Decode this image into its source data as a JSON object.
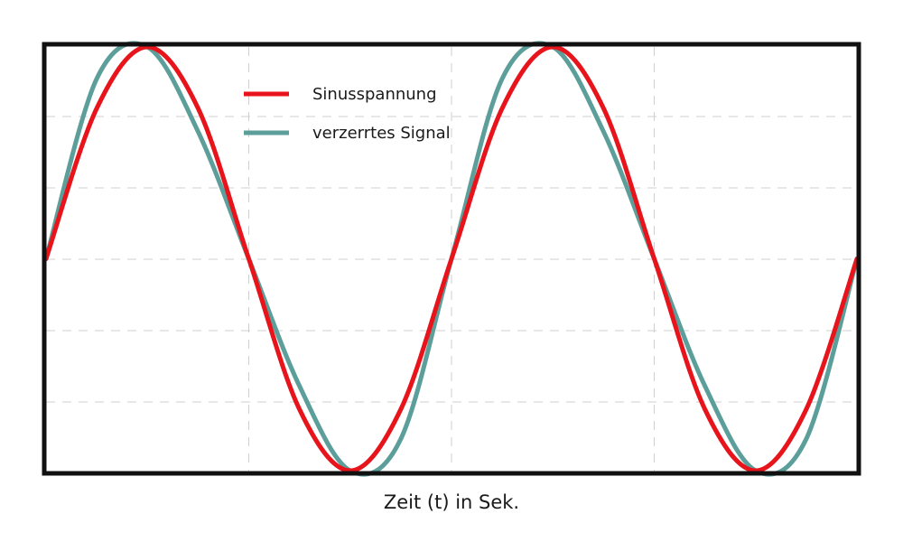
{
  "chart_data": {
    "type": "line",
    "title": "",
    "xlabel": "Zeit (t) in Sek.",
    "ylabel": "",
    "xlim": [
      0,
      4
    ],
    "ylim": [
      -1,
      1
    ],
    "grid": true,
    "legend_position": "top-center",
    "series": [
      {
        "name": "Sinusspannung",
        "color": "#e8141b",
        "x": [
          0,
          0.25,
          0.5,
          0.75,
          1,
          1.25,
          1.5,
          1.75,
          2,
          2.25,
          2.5,
          2.75,
          3,
          3.25,
          3.5,
          3.75,
          4
        ],
        "y": [
          0,
          0.71,
          1,
          0.71,
          0,
          -0.71,
          -1,
          -0.71,
          0,
          0.71,
          1,
          0.71,
          0,
          -0.71,
          -1,
          -0.71,
          0
        ]
      },
      {
        "name": "verzerrtes Signal",
        "color": "#5c9e9a",
        "x": [
          0,
          0.25,
          0.5,
          0.75,
          1,
          1.25,
          1.5,
          1.75,
          2,
          2.25,
          2.5,
          2.75,
          3,
          3.25,
          3.5,
          3.75,
          4
        ],
        "y": [
          0,
          0.85,
          1,
          0.6,
          0,
          -0.6,
          -1,
          -0.85,
          0,
          0.85,
          1,
          0.6,
          0,
          -0.6,
          -1,
          -0.85,
          0
        ]
      }
    ]
  }
}
